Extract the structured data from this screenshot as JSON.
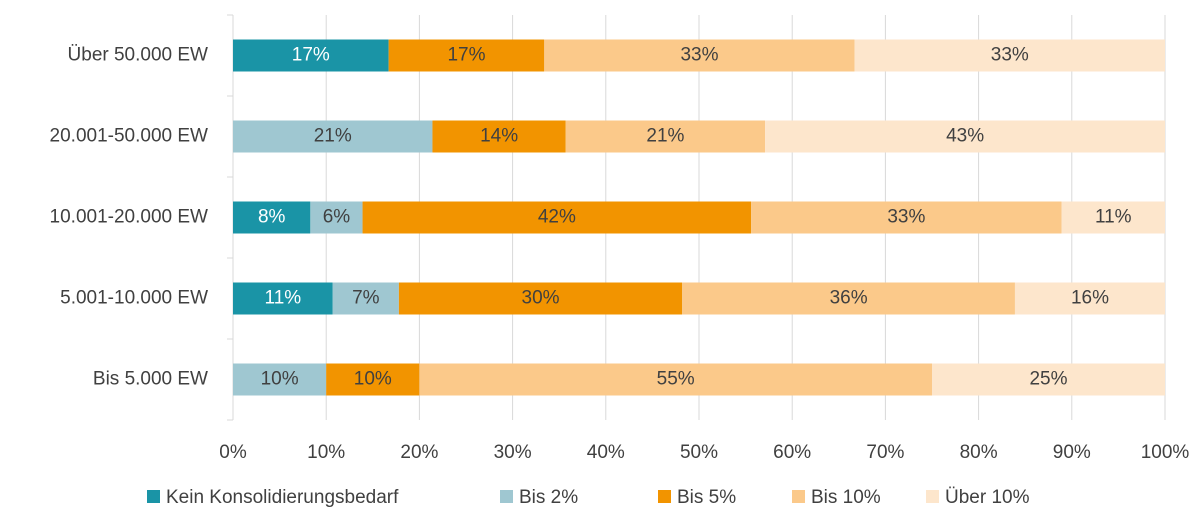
{
  "chart_data": {
    "type": "stacked-bar-horizontal",
    "categories": [
      "Über 50.000 EW",
      "20.001-50.000 EW",
      "10.001-20.000 EW",
      "5.001-10.000 EW",
      "Bis 5.000 EW"
    ],
    "series": [
      {
        "name": "Kein Konsolidierungsbedarf",
        "color": "#1a94a6",
        "values": [
          16.7,
          0,
          8.3,
          10.7,
          0
        ],
        "value_labels": [
          "17%",
          null,
          "8%",
          "11%",
          null
        ]
      },
      {
        "name": "Bis 2%",
        "color": "#9fc7d1",
        "values": [
          0,
          21.4,
          5.6,
          7.1,
          10
        ],
        "value_labels": [
          null,
          "21%",
          "6%",
          "7%",
          "10%"
        ]
      },
      {
        "name": "Bis 5%",
        "color": "#f29400",
        "values": [
          16.7,
          14.3,
          41.7,
          30.4,
          10
        ],
        "value_labels": [
          "17%",
          "14%",
          "42%",
          "30%",
          "10%"
        ]
      },
      {
        "name": "Bis 10%",
        "color": "#fbc98a",
        "values": [
          33.3,
          21.4,
          33.3,
          35.7,
          55
        ],
        "value_labels": [
          "33%",
          "21%",
          "33%",
          "36%",
          "55%"
        ]
      },
      {
        "name": "Über 10%",
        "color": "#fde6cc",
        "values": [
          33.3,
          42.9,
          11.1,
          16.1,
          25
        ],
        "value_labels": [
          "33%",
          "43%",
          "11%",
          "16%",
          "25%"
        ]
      }
    ],
    "xlim": [
      0,
      100
    ],
    "xticks": [
      {
        "value": 0,
        "label": "0%"
      },
      {
        "value": 10,
        "label": "10%"
      },
      {
        "value": 20,
        "label": "20%"
      },
      {
        "value": 30,
        "label": "30%"
      },
      {
        "value": 40,
        "label": "40%"
      },
      {
        "value": 50,
        "label": "50%"
      },
      {
        "value": 60,
        "label": "60%"
      },
      {
        "value": 70,
        "label": "70%"
      },
      {
        "value": 80,
        "label": "80%"
      },
      {
        "value": 90,
        "label": "90%"
      },
      {
        "value": 100,
        "label": "100%"
      }
    ],
    "grid": true,
    "legend": "bottom"
  }
}
